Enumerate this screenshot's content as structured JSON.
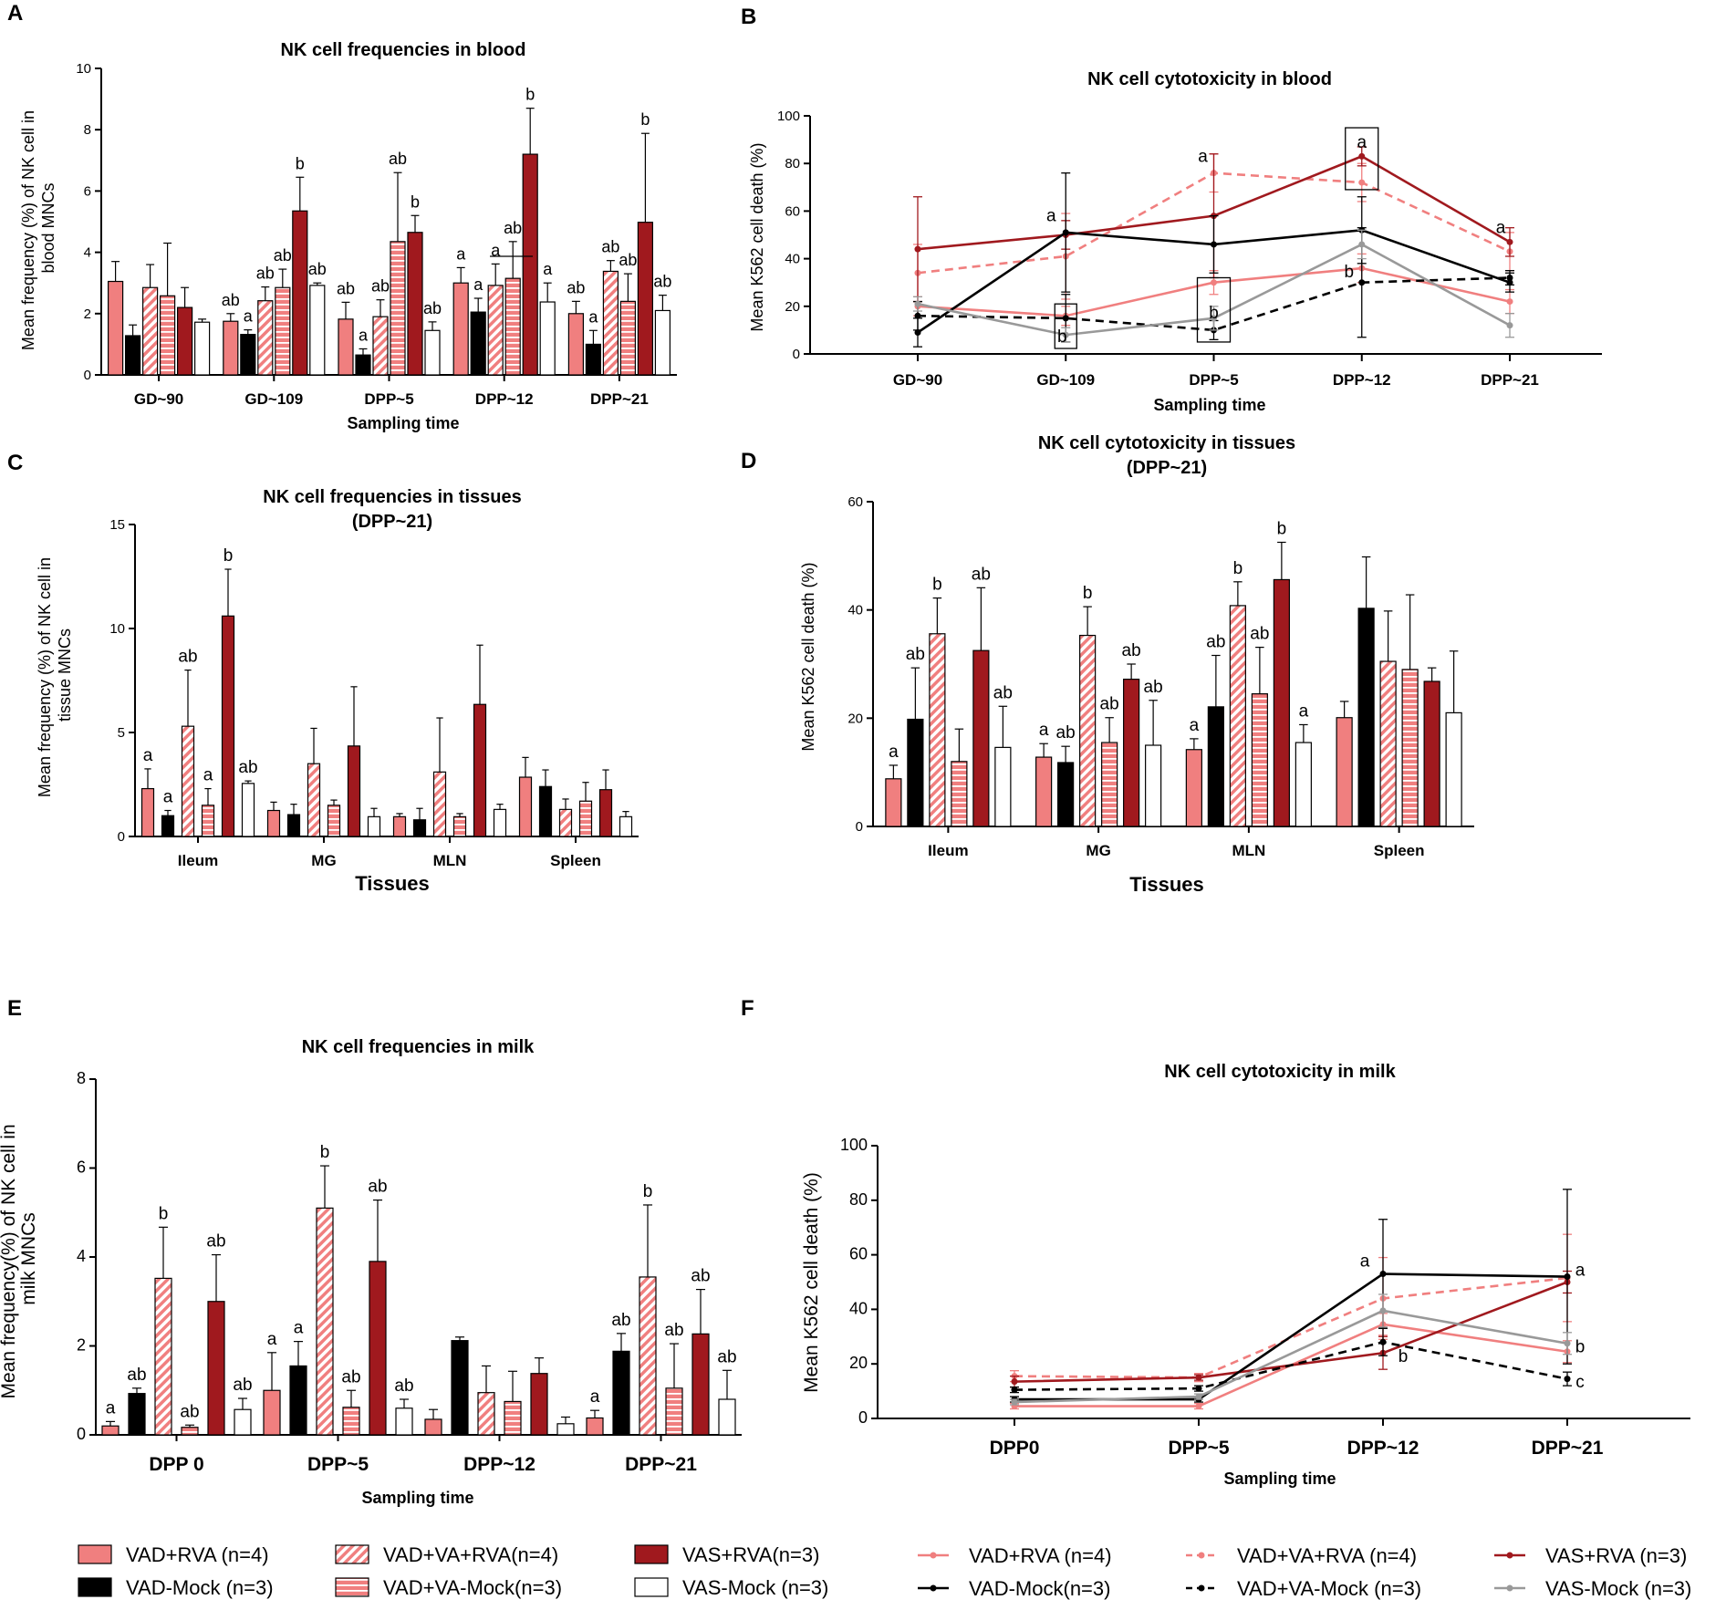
{
  "figure": {
    "legend_bar": [
      {
        "label": "VAD+RVA (n=4)",
        "fill": "#f07f7f",
        "pattern": "solid"
      },
      {
        "label": "VAD+VA+RVA(n=4)",
        "fill": "#f07f7f",
        "pattern": "diag"
      },
      {
        "label": "VAS+RVA(n=3)",
        "fill": "#a0191e",
        "pattern": "solid"
      },
      {
        "label": "VAD-Mock (n=3)",
        "fill": "#000000",
        "pattern": "solid"
      },
      {
        "label": "VAD+VA-Mock(n=3)",
        "fill": "#f07f7f",
        "pattern": "horiz"
      },
      {
        "label": "VAS-Mock (n=3)",
        "fill": "#ffffff",
        "pattern": "solid"
      }
    ],
    "legend_line": [
      {
        "label": "VAD+RVA (n=4)",
        "color": "#f07f7f",
        "dash": false
      },
      {
        "label": "VAD+VA+RVA (n=4)",
        "color": "#f07f7f",
        "dash": true
      },
      {
        "label": "VAS+RVA (n=3)",
        "color": "#a0191e",
        "dash": false
      },
      {
        "label": "VAD-Mock(n=3)",
        "color": "#000000",
        "dash": false
      },
      {
        "label": "VAD+VA-Mock (n=3)",
        "color": "#000000",
        "dash": true
      },
      {
        "label": "VAS-Mock (n=3)",
        "color": "#999999",
        "dash": false
      }
    ]
  },
  "chart_data": [
    {
      "panel": "A",
      "type": "bar",
      "title": "NK cell frequencies in blood",
      "ylabel": "Mean frequency (%) of NK cell in blood MNCs",
      "xlabel": "Sampling time",
      "ylim": [
        0,
        10
      ],
      "yticks": [
        "0",
        "2",
        "4",
        "6",
        "8",
        "10"
      ],
      "categories": [
        "GD~90",
        "GD~109",
        "DPP~5",
        "DPP~12",
        "DPP~21"
      ],
      "series": [
        {
          "name": "VAD+RVA",
          "values": [
            3.05,
            1.75,
            1.82,
            3.0,
            2.0
          ],
          "err": [
            0.65,
            0.25,
            0.55,
            0.5,
            0.4
          ],
          "labels": [
            "",
            "ab",
            "ab",
            "a",
            "ab"
          ]
        },
        {
          "name": "VAD-Mock",
          "values": [
            1.28,
            1.32,
            0.65,
            2.05,
            1.0
          ],
          "err": [
            0.35,
            0.15,
            0.2,
            0.45,
            0.45
          ],
          "labels": [
            "",
            "a",
            "a",
            "a",
            "a"
          ]
        },
        {
          "name": "VAD+VA+RVA",
          "values": [
            2.85,
            2.42,
            1.9,
            2.92,
            3.38
          ],
          "err": [
            0.75,
            0.45,
            0.55,
            0.7,
            0.35
          ],
          "labels": [
            "",
            "ab",
            "ab",
            "a",
            "ab"
          ]
        },
        {
          "name": "VAD+VA-Mock",
          "values": [
            2.58,
            2.85,
            4.35,
            3.15,
            2.4
          ],
          "err": [
            1.72,
            0.6,
            2.25,
            1.2,
            0.9
          ],
          "labels": [
            "",
            "ab",
            "ab",
            "ab",
            "ab"
          ]
        },
        {
          "name": "VAS+RVA",
          "values": [
            2.2,
            5.35,
            4.65,
            7.2,
            4.98
          ],
          "err": [
            0.65,
            1.1,
            0.55,
            1.5,
            2.9
          ],
          "labels": [
            "",
            "b",
            "b",
            "b",
            "b"
          ]
        },
        {
          "name": "VAS-Mock",
          "values": [
            1.72,
            2.92,
            1.45,
            2.38,
            2.1
          ],
          "err": [
            0.1,
            0.08,
            0.28,
            0.62,
            0.5
          ],
          "labels": [
            "",
            "ab",
            "ab",
            "a",
            "ab"
          ]
        }
      ]
    },
    {
      "panel": "B",
      "type": "line",
      "title": "NK cell cytotoxicity in blood",
      "ylabel": "Mean K562 cell death (%)",
      "xlabel": "Sampling time",
      "ylim": [
        0,
        100
      ],
      "yticks": [
        "0",
        "20",
        "40",
        "60",
        "80",
        "100"
      ],
      "x": [
        "GD~90",
        "GD~109",
        "DPP~5",
        "DPP~12",
        "DPP~21"
      ],
      "series": [
        {
          "name": "VAD+RVA",
          "values": [
            20,
            16,
            30,
            36,
            22
          ],
          "err": [
            4,
            4,
            5,
            6,
            5
          ]
        },
        {
          "name": "VAD+VA+RVA",
          "values": [
            34,
            41,
            76,
            72,
            43
          ],
          "err": [
            12,
            18,
            8,
            8,
            8
          ]
        },
        {
          "name": "VAS+RVA",
          "values": [
            44,
            50,
            58,
            83,
            47
          ],
          "err": [
            22,
            6,
            26,
            4,
            6
          ]
        },
        {
          "name": "VAD-Mock",
          "values": [
            9,
            51,
            46,
            52,
            30
          ],
          "err": [
            6,
            25,
            12,
            14,
            4
          ]
        },
        {
          "name": "VAD+VA-Mock",
          "values": [
            16,
            15,
            10,
            30,
            32
          ],
          "err": [
            6,
            10,
            4,
            23,
            3
          ]
        },
        {
          "name": "VAS-Mock",
          "values": [
            21,
            8,
            15,
            46,
            12
          ],
          "err": [
            3,
            3,
            5,
            6,
            5
          ]
        }
      ],
      "annotations": [
        "a",
        "b",
        "a",
        "b",
        "a",
        "b",
        "a"
      ]
    },
    {
      "panel": "C",
      "type": "bar",
      "title": "NK cell frequencies in tissues",
      "subtitle": "(DPP~21)",
      "ylabel": "Mean frequency (%) of NK cell in tissue MNCs",
      "xlabel": "Tissues",
      "ylim": [
        0,
        15
      ],
      "yticks": [
        "0",
        "5",
        "10",
        "15"
      ],
      "categories": [
        "Ileum",
        "MG",
        "MLN",
        "Spleen"
      ],
      "series": [
        {
          "name": "VAD+RVA",
          "values": [
            2.3,
            1.25,
            0.95,
            2.85
          ],
          "err": [
            0.95,
            0.4,
            0.15,
            0.95
          ],
          "labels": [
            "a",
            "",
            "",
            ""
          ]
        },
        {
          "name": "VAD-Mock",
          "values": [
            1.0,
            1.05,
            0.8,
            2.4
          ],
          "err": [
            0.25,
            0.5,
            0.55,
            0.8
          ],
          "labels": [
            "a",
            "",
            "",
            ""
          ]
        },
        {
          "name": "VAD+VA+RVA",
          "values": [
            5.3,
            3.5,
            3.1,
            1.3
          ],
          "err": [
            2.7,
            1.7,
            2.6,
            0.5
          ],
          "labels": [
            "ab",
            "",
            "",
            ""
          ]
        },
        {
          "name": "VAD+VA-Mock",
          "values": [
            1.5,
            1.5,
            0.95,
            1.7
          ],
          "err": [
            0.8,
            0.25,
            0.15,
            0.9
          ],
          "labels": [
            "a",
            "",
            "",
            ""
          ]
        },
        {
          "name": "VAS+RVA",
          "values": [
            10.6,
            4.35,
            6.35,
            2.25
          ],
          "err": [
            2.25,
            2.85,
            2.85,
            0.95
          ],
          "labels": [
            "b",
            "",
            "",
            ""
          ]
        },
        {
          "name": "VAS-Mock",
          "values": [
            2.55,
            0.95,
            1.3,
            0.95
          ],
          "err": [
            0.12,
            0.4,
            0.25,
            0.25
          ],
          "labels": [
            "ab",
            "",
            "",
            ""
          ]
        }
      ]
    },
    {
      "panel": "D",
      "type": "bar",
      "title": "NK cell cytotoxicity in tissues",
      "subtitle": "(DPP~21)",
      "ylabel": "Mean K562 cell death (%)",
      "xlabel": "Tissues",
      "ylim": [
        0,
        60
      ],
      "yticks": [
        "0",
        "20",
        "40",
        "60"
      ],
      "categories": [
        "Ileum",
        "MG",
        "MLN",
        "Spleen"
      ],
      "series": [
        {
          "name": "VAD+RVA",
          "values": [
            8.8,
            12.8,
            14.2,
            20.1
          ],
          "err": [
            2.5,
            2.5,
            2.0,
            3.0
          ],
          "labels": [
            "a",
            "a",
            "a",
            ""
          ]
        },
        {
          "name": "VAD-Mock",
          "values": [
            19.8,
            11.8,
            22.1,
            40.3
          ],
          "err": [
            9.5,
            3.0,
            9.5,
            9.5
          ],
          "labels": [
            "ab",
            "ab",
            "ab",
            ""
          ]
        },
        {
          "name": "VAD+VA+RVA",
          "values": [
            35.6,
            35.3,
            40.8,
            30.5
          ],
          "err": [
            6.6,
            5.3,
            4.4,
            9.3
          ],
          "labels": [
            "b",
            "b",
            "b",
            ""
          ]
        },
        {
          "name": "VAD+VA-Mock",
          "values": [
            12.0,
            15.5,
            24.5,
            29.0
          ],
          "err": [
            6.0,
            4.6,
            8.6,
            13.8
          ],
          "labels": [
            "",
            "ab",
            "ab",
            ""
          ]
        },
        {
          "name": "VAS+RVA",
          "values": [
            32.5,
            27.2,
            45.6,
            26.8
          ],
          "err": [
            11.6,
            2.8,
            6.9,
            2.5
          ],
          "labels": [
            "ab",
            "ab",
            "b",
            ""
          ]
        },
        {
          "name": "VAS-Mock",
          "values": [
            14.6,
            15.0,
            15.5,
            21.0
          ],
          "err": [
            7.6,
            8.3,
            3.3,
            11.4
          ],
          "labels": [
            "ab",
            "ab",
            "a",
            ""
          ]
        }
      ]
    },
    {
      "panel": "E",
      "type": "bar",
      "title": "NK cell frequencies in milk",
      "ylabel": "Mean frequency(%) of NK cell in milk MNCs",
      "xlabel": "Sampling time",
      "ylim": [
        0,
        8
      ],
      "yticks": [
        "0",
        "2",
        "4",
        "6",
        "8"
      ],
      "categories": [
        "DPP 0",
        "DPP~5",
        "DPP~12",
        "DPP~21"
      ],
      "series": [
        {
          "name": "VAD+RVA",
          "values": [
            0.2,
            1.0,
            0.35,
            0.38
          ],
          "err": [
            0.1,
            0.85,
            0.22,
            0.17
          ],
          "labels": [
            "a",
            "a",
            "",
            "a"
          ]
        },
        {
          "name": "VAD-Mock",
          "values": [
            0.93,
            1.55,
            2.12,
            1.88
          ],
          "err": [
            0.12,
            0.55,
            0.08,
            0.4
          ],
          "labels": [
            "ab",
            "a",
            "",
            "ab"
          ]
        },
        {
          "name": "VAD+VA+RVA",
          "values": [
            3.52,
            5.1,
            0.95,
            3.55
          ],
          "err": [
            1.15,
            0.95,
            0.6,
            1.62
          ],
          "labels": [
            "b",
            "b",
            "",
            "b"
          ]
        },
        {
          "name": "VAD+VA-Mock",
          "values": [
            0.17,
            0.62,
            0.75,
            1.05
          ],
          "err": [
            0.05,
            0.38,
            0.68,
            1.0
          ],
          "labels": [
            "ab",
            "ab",
            "",
            "ab"
          ]
        },
        {
          "name": "VAS+RVA",
          "values": [
            3.0,
            3.9,
            1.38,
            2.27
          ],
          "err": [
            1.05,
            1.38,
            0.35,
            1.0
          ],
          "labels": [
            "ab",
            "ab",
            "",
            "ab"
          ]
        },
        {
          "name": "VAS-Mock",
          "values": [
            0.57,
            0.6,
            0.25,
            0.8
          ],
          "err": [
            0.25,
            0.2,
            0.15,
            0.65
          ],
          "labels": [
            "ab",
            "ab",
            "",
            "ab"
          ]
        }
      ]
    },
    {
      "panel": "F",
      "type": "line",
      "title": "NK cell cytotoxicity in milk",
      "ylabel": "Mean K562 cell death (%)",
      "xlabel": "Sampling time",
      "ylim": [
        0,
        100
      ],
      "yticks": [
        "0",
        "20",
        "40",
        "60",
        "80",
        "100"
      ],
      "x": [
        "DPP0",
        "DPP~5",
        "DPP~12",
        "DPP~21"
      ],
      "series": [
        {
          "name": "VAD+RVA",
          "values": [
            4.5,
            4.5,
            34.5,
            24.5
          ],
          "err": [
            1,
            1,
            4,
            4
          ]
        },
        {
          "name": "VAD+VA+RVA",
          "values": [
            15.5,
            15,
            44,
            51.5
          ],
          "err": [
            2,
            1.5,
            15,
            16
          ]
        },
        {
          "name": "VAS+RVA",
          "values": [
            13.5,
            15,
            24,
            50
          ],
          "err": [
            2,
            1,
            6,
            4
          ]
        },
        {
          "name": "VAD-Mock",
          "values": [
            7,
            7,
            53,
            52
          ],
          "err": [
            1,
            1,
            20,
            32
          ]
        },
        {
          "name": "VAD+VA-Mock",
          "values": [
            10.5,
            11,
            28,
            14.5
          ],
          "err": [
            1,
            1,
            5,
            2.5
          ]
        },
        {
          "name": "VAS-Mock",
          "values": [
            6,
            8,
            39.5,
            27.5
          ],
          "err": [
            1,
            1,
            6,
            4
          ]
        }
      ],
      "annotations": [
        "a",
        "b",
        "a",
        "b",
        "c"
      ]
    }
  ]
}
